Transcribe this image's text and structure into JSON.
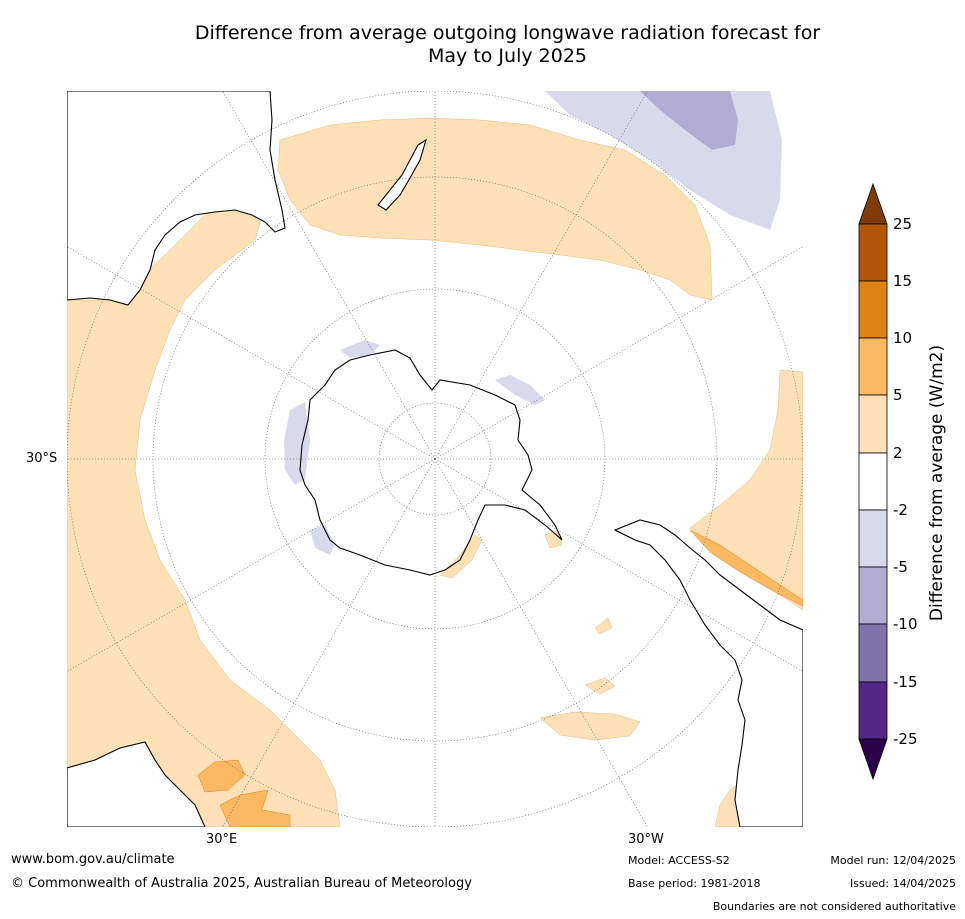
{
  "title": {
    "line1": "Difference from average outgoing longwave radiation forecast for",
    "line2": "May to July 2025"
  },
  "map": {
    "projection": "south-polar-stereographic",
    "latitude_label": "30°S",
    "longitude_labels": [
      "30°E",
      "30°W"
    ],
    "background_color": "#ffffff"
  },
  "colorbar": {
    "title": "Difference from average (W/m2)",
    "tick_labels": [
      "25",
      "15",
      "10",
      "5",
      "2",
      "-2",
      "-5",
      "-10",
      "-15",
      "-25"
    ],
    "colors": [
      "#7f3b08",
      "#b35806",
      "#e08214",
      "#fdb863",
      "#fee0b6",
      "#ffffff",
      "#d8daeb",
      "#b2abd2",
      "#8073ac",
      "#542788",
      "#2d004b"
    ]
  },
  "footer": {
    "website": "www.bom.gov.au/climate",
    "copyright": "© Commonwealth of Australia 2025, Australian Bureau of Meteorology",
    "model": "Model: ACCESS-S2",
    "base_period": "Base period: 1981-2018",
    "model_run": "Model run: 12/04/2025",
    "issued": "Issued: 14/04/2025",
    "disclaimer": "Boundaries are not considered authoritative"
  }
}
